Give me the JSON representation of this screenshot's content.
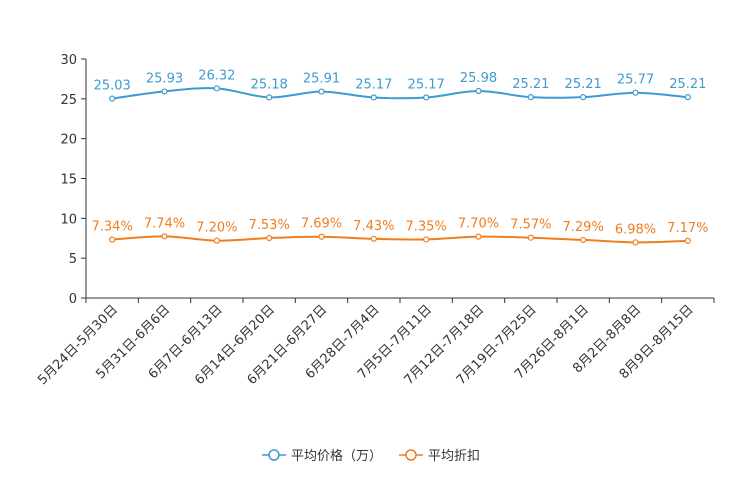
{
  "chart_data": {
    "type": "line",
    "categories": [
      "5月24日-5月30日",
      "5月31日-6月6日",
      "6月7日-6月13日",
      "6月14日-6月20日",
      "6月21日-6月27日",
      "6月28日-7月4日",
      "7月5日-7月11日",
      "7月12日-7月18日",
      "7月19日-7月25日",
      "7月26日-8月1日",
      "8月2日-8月8日",
      "8月9日-8月15日"
    ],
    "ylim": [
      0,
      30
    ],
    "yticks": [
      "0",
      "5",
      "10",
      "15",
      "20",
      "25",
      "30"
    ],
    "series": [
      {
        "name": "平均价格（万）",
        "color": "#3c9bd0",
        "values": [
          25.03,
          25.93,
          26.32,
          25.18,
          25.91,
          25.17,
          25.17,
          25.98,
          25.21,
          25.21,
          25.77,
          25.21
        ],
        "labels": [
          "25.03",
          "25.93",
          "26.32",
          "25.18",
          "25.91",
          "25.17",
          "25.17",
          "25.98",
          "25.21",
          "25.21",
          "25.77",
          "25.21"
        ]
      },
      {
        "name": "平均折扣",
        "color": "#f07d1e",
        "values": [
          7.34,
          7.74,
          7.2,
          7.53,
          7.69,
          7.43,
          7.35,
          7.7,
          7.57,
          7.29,
          6.98,
          7.17
        ],
        "labels": [
          "7.34%",
          "7.74%",
          "7.20%",
          "7.53%",
          "7.69%",
          "7.43%",
          "7.35%",
          "7.70%",
          "7.57%",
          "7.29%",
          "6.98%",
          "7.17%"
        ]
      }
    ]
  }
}
